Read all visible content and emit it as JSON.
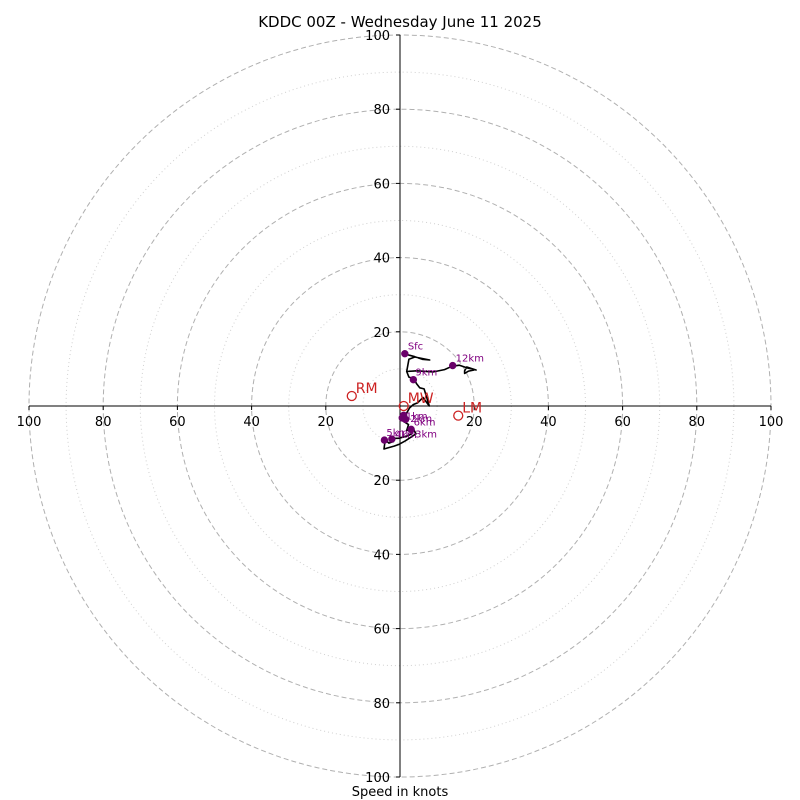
{
  "chart_data": {
    "type": "hodograph",
    "title": "KDDC 00Z - Wednesday June 11 2025",
    "xlabel": "Speed in knots",
    "units": "knots",
    "max_speed": 100,
    "major_rings": [
      20,
      40,
      60,
      80,
      100
    ],
    "minor_rings": [
      10,
      30,
      50,
      70,
      90
    ],
    "tick_labels": [
      "100",
      "80",
      "60",
      "40",
      "20",
      "20",
      "40",
      "60",
      "80",
      "100"
    ],
    "y_tick_labels": [
      "100",
      "80",
      "60",
      "40",
      "20",
      "20",
      "40",
      "60",
      "80",
      "100"
    ],
    "grid": true,
    "colors": {
      "ring": "#b0b0b0",
      "trace": "#000000",
      "height_marker": "#6a006a",
      "height_label": "#800080",
      "motion": "#cc2222"
    },
    "trace": [
      [
        1.3,
        14.1
      ],
      [
        2.5,
        13.7
      ],
      [
        4,
        13.3
      ],
      [
        6,
        12.6
      ],
      [
        8,
        12.4
      ],
      [
        4,
        13.2
      ],
      [
        2.4,
        12.6
      ],
      [
        1.8,
        9.3
      ],
      [
        2.4,
        7.8
      ],
      [
        2.9,
        7.6
      ],
      [
        3.1,
        7.2
      ],
      [
        3.9,
        7.4
      ],
      [
        4.4,
        6.1
      ],
      [
        5.3,
        4.9
      ],
      [
        6.5,
        4.6
      ],
      [
        7.9,
        0
      ],
      [
        6.2,
        2.3
      ],
      [
        4.8,
        0.9
      ],
      [
        3.6,
        0.4
      ],
      [
        2.6,
        -0.5
      ],
      [
        1.2,
        -2.9
      ],
      [
        0.1,
        -3.4
      ],
      [
        1.2,
        -2.6
      ],
      [
        0.4,
        -3.8
      ],
      [
        2.3,
        -5
      ],
      [
        1.8,
        -6.6
      ],
      [
        3.6,
        -6.2
      ],
      [
        3.1,
        -7.5
      ],
      [
        2.4,
        -7.9
      ],
      [
        1.1,
        -8.3
      ],
      [
        -0.4,
        -8.7
      ],
      [
        -1.3,
        -8.7
      ],
      [
        -1.9,
        -9.6
      ],
      [
        -3,
        -10
      ],
      [
        -4,
        -9.1
      ],
      [
        -4.3,
        -11.6
      ],
      [
        -3.3,
        -11.3
      ],
      [
        -1.6,
        -10.8
      ],
      [
        -0.2,
        -10.3
      ],
      [
        1.4,
        -9.4
      ],
      [
        3.1,
        -8.3
      ],
      [
        4.3,
        -7.5
      ],
      [
        3.6,
        -6.2
      ]
    ],
    "upper_trace": [
      [
        1.8,
        9.3
      ],
      [
        4.5,
        9.5
      ],
      [
        9,
        9.2
      ],
      [
        12,
        9.8
      ],
      [
        14,
        10.7
      ],
      [
        16,
        11
      ],
      [
        18,
        10.3
      ],
      [
        20.5,
        9.7
      ],
      [
        18,
        10.5
      ],
      [
        17.4,
        9.5
      ],
      [
        17.4,
        8.8
      ],
      [
        18.5,
        9.4
      ],
      [
        20,
        9.7
      ]
    ],
    "height_markers": [
      {
        "label": "Sfc",
        "u": 1.3,
        "v": 14.1
      },
      {
        "label": "12km",
        "u": 14.2,
        "v": 10.9
      },
      {
        "label": "9km",
        "u": 3.6,
        "v": 7.1
      },
      {
        "label": "1km",
        "u": 1,
        "v": -2.5
      },
      {
        "label": "2km",
        "u": 0.6,
        "v": -3.2
      },
      {
        "label": "6km",
        "u": 1.5,
        "v": -3.6
      },
      {
        "label": "3km",
        "u": 3,
        "v": -6.3
      },
      {
        "label": "5km",
        "u": -4.2,
        "v": -9.2
      },
      {
        "label": "4km",
        "u": -2.2,
        "v": -8.9
      }
    ],
    "storm_motions": [
      {
        "label": "RM",
        "u": -13,
        "v": 2.7
      },
      {
        "label": "LM",
        "u": 15.7,
        "v": -2.6
      },
      {
        "label": "MW",
        "u": 1,
        "v": 0
      }
    ]
  }
}
